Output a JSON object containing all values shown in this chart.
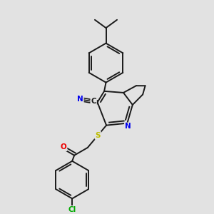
{
  "bg_color": "#e2e2e2",
  "bond_color": "#1a1a1a",
  "bond_width": 1.4,
  "dbo": 0.012,
  "atom_colors": {
    "N": "#0000ee",
    "S": "#bbbb00",
    "O": "#ee0000",
    "Cl": "#00aa00",
    "C": "#1a1a1a",
    "CN_N": "#0000ee"
  },
  "font_size": 7.5
}
